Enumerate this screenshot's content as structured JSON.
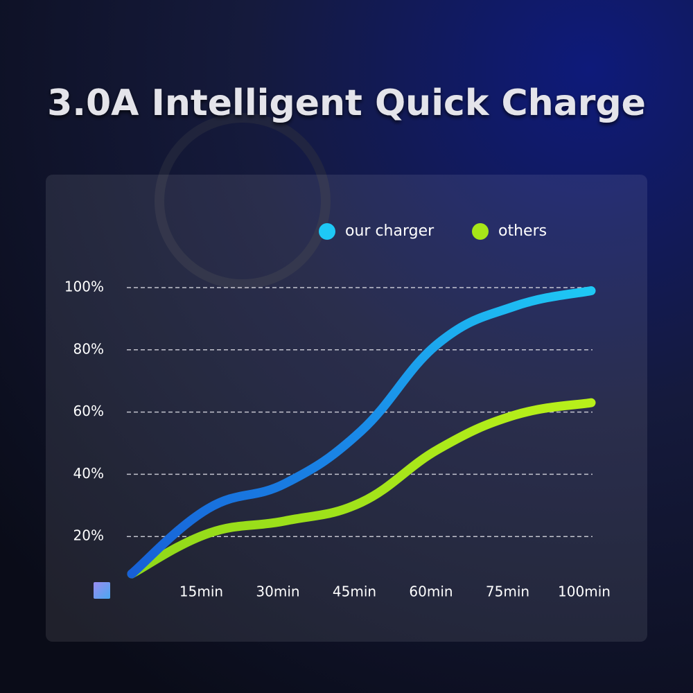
{
  "chart_data": {
    "type": "line",
    "title": "3.0A Intelligent Quick Charge",
    "categories": [
      null,
      "15min",
      "30min",
      "45min",
      "60min",
      "75min",
      "100min"
    ],
    "series": [
      {
        "name": "our charger",
        "color": "#1ec8f5",
        "values": [
          8,
          29,
          37,
          54,
          82,
          94,
          99
        ]
      },
      {
        "name": "others",
        "color": "#a6e619",
        "values": [
          8,
          21,
          25,
          31,
          48,
          59,
          63
        ]
      }
    ],
    "ylim": [
      0,
      100
    ],
    "yticks": [
      {
        "value": 20,
        "label": "20%"
      },
      {
        "value": 40,
        "label": "40%"
      },
      {
        "value": 60,
        "label": "60%"
      },
      {
        "value": 80,
        "label": "80%"
      },
      {
        "value": 100,
        "label": "100%"
      }
    ],
    "grid": true
  }
}
